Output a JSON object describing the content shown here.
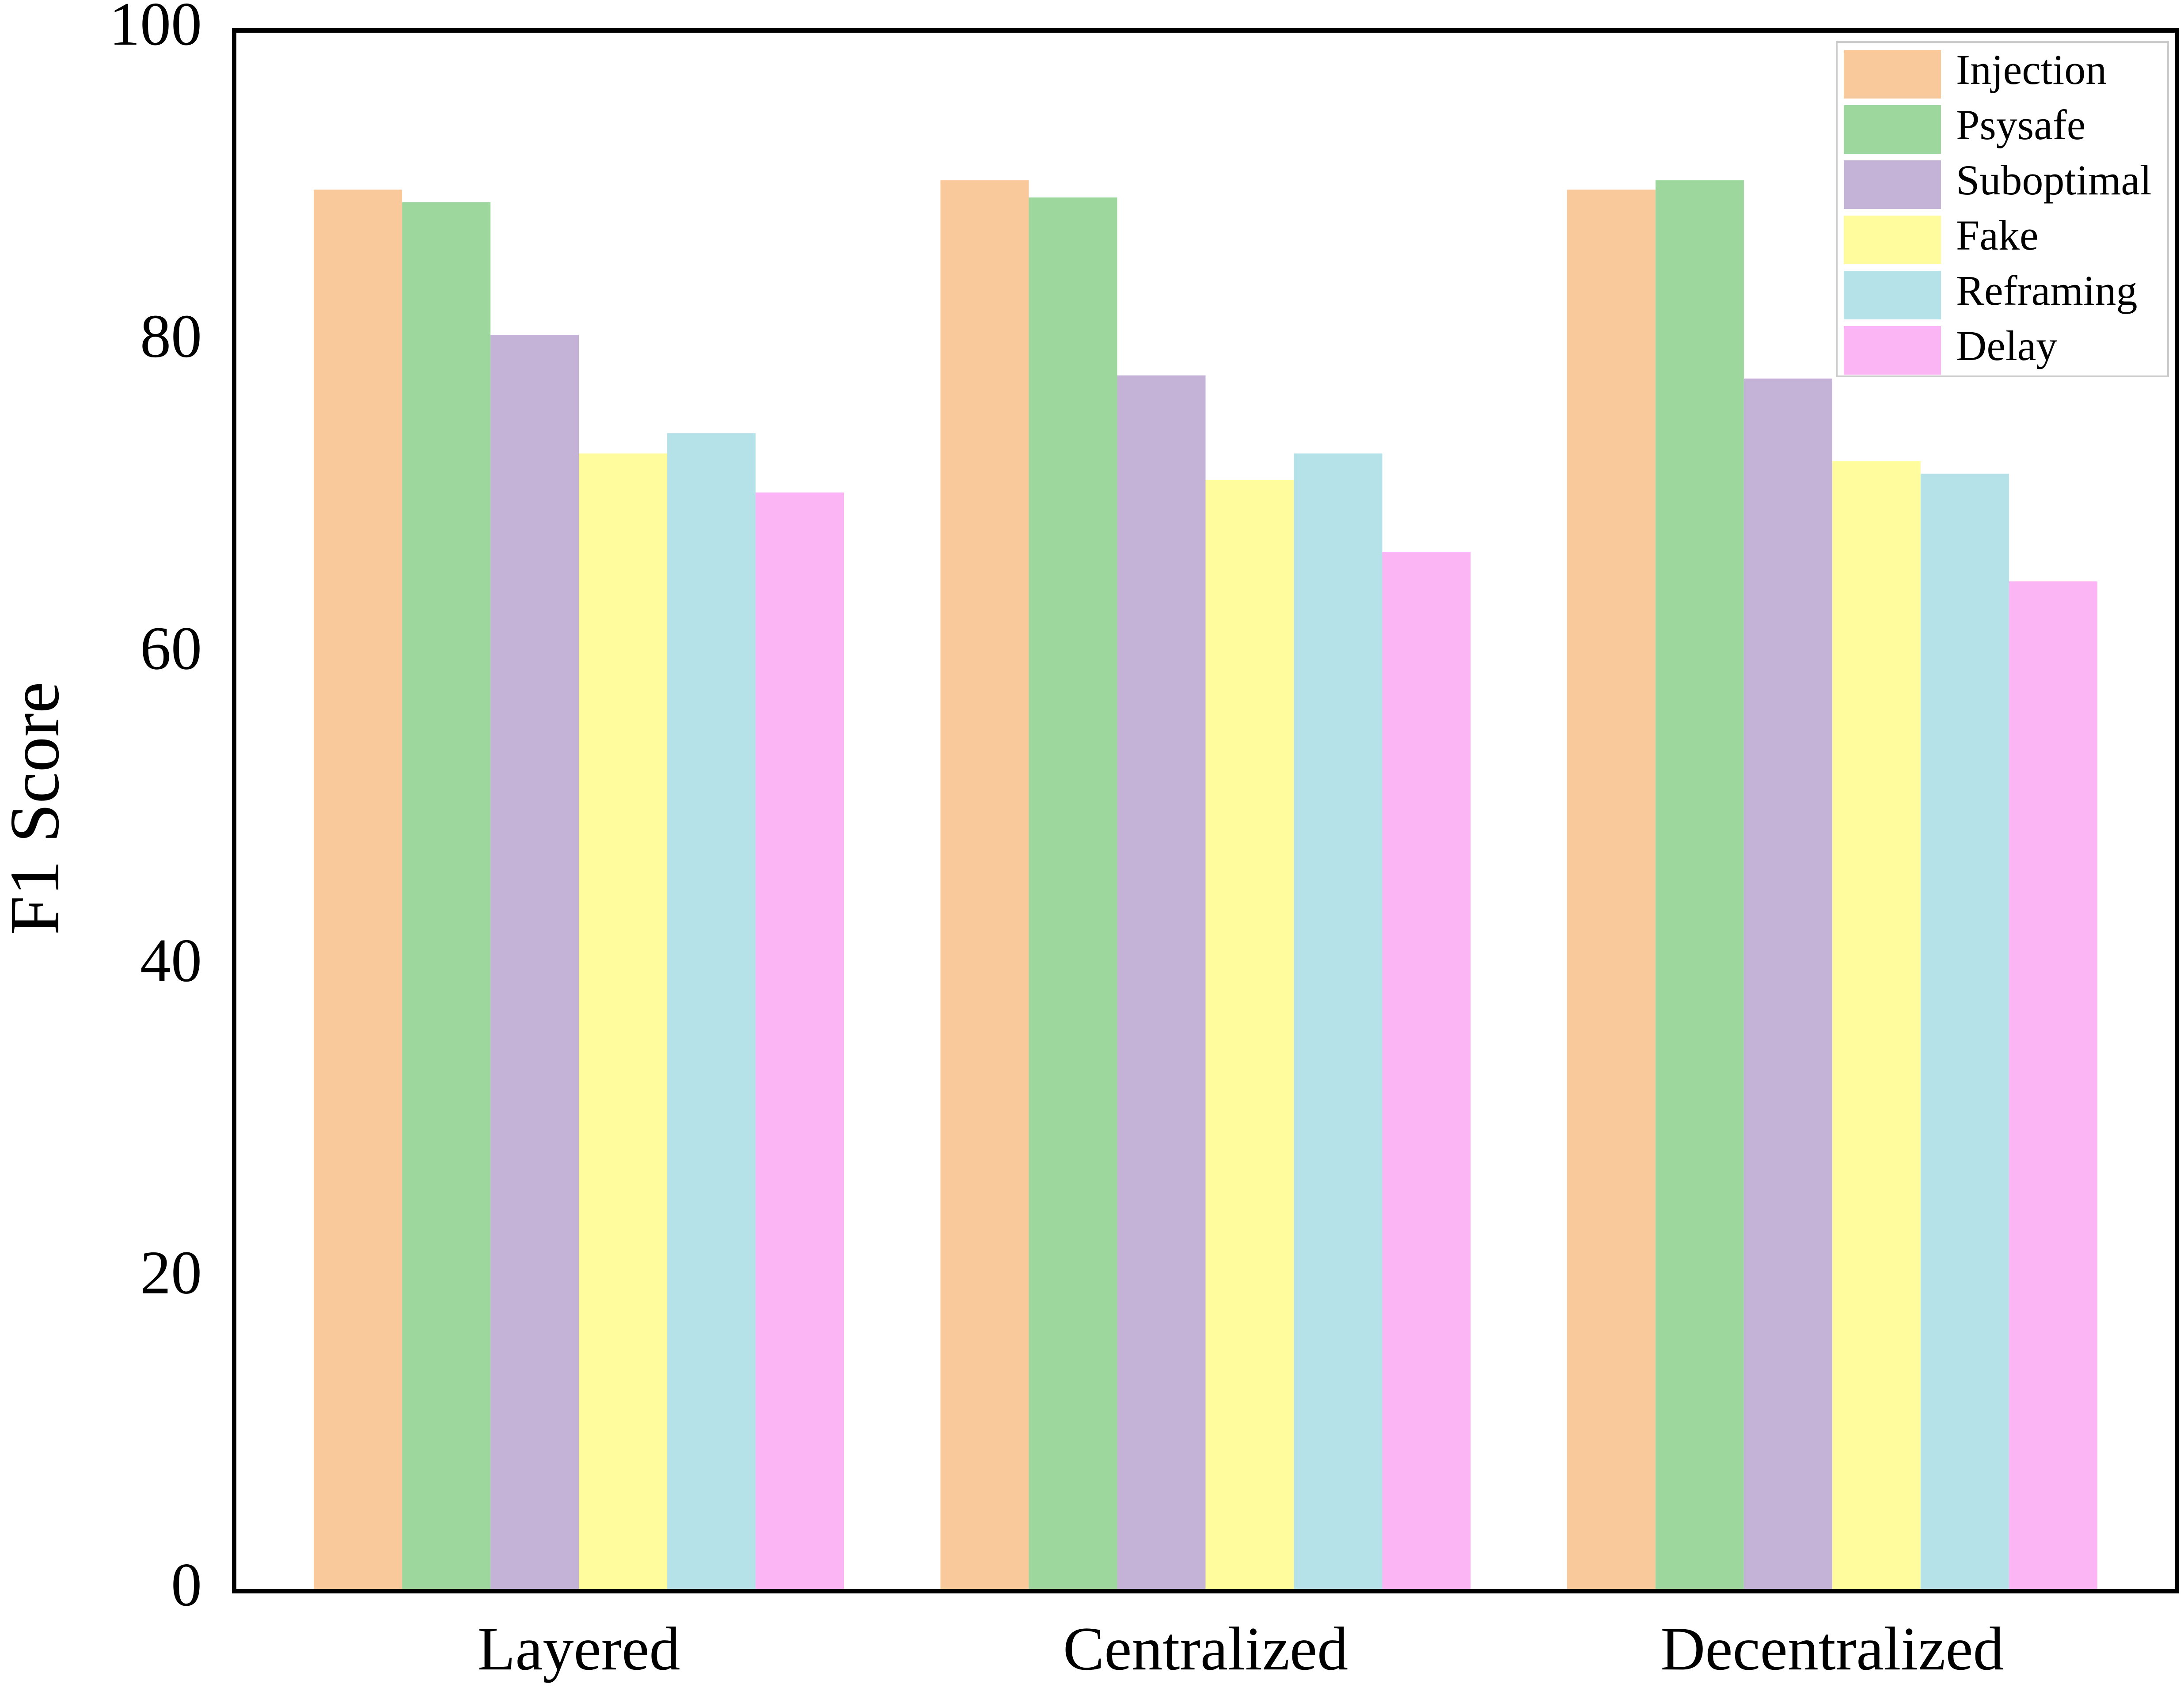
{
  "chart_data": {
    "type": "bar",
    "y_label": "F1 Score",
    "categories": [
      "Layered",
      "Centralized",
      "Decentralized"
    ],
    "series": [
      {
        "name": "Injection",
        "color": "#f9c89b",
        "values": [
          89.8,
          90.4,
          89.8
        ]
      },
      {
        "name": "Psysafe",
        "color": "#9dd79e",
        "values": [
          89.0,
          89.3,
          90.4
        ]
      },
      {
        "name": "Suboptimal",
        "color": "#c4b2d7",
        "values": [
          80.5,
          77.9,
          77.7
        ]
      },
      {
        "name": "Fake",
        "color": "#fefc9d",
        "values": [
          72.9,
          71.2,
          72.4
        ]
      },
      {
        "name": "Reframing",
        "color": "#b4e2e8",
        "values": [
          74.2,
          72.9,
          71.6
        ]
      },
      {
        "name": "Delay",
        "color": "#fcb5f4",
        "values": [
          70.4,
          66.6,
          64.7
        ]
      }
    ],
    "ylim": [
      0,
      100
    ],
    "yticks": [
      0,
      20,
      40,
      60,
      80,
      100
    ],
    "grid": false,
    "legend": "upper right"
  }
}
